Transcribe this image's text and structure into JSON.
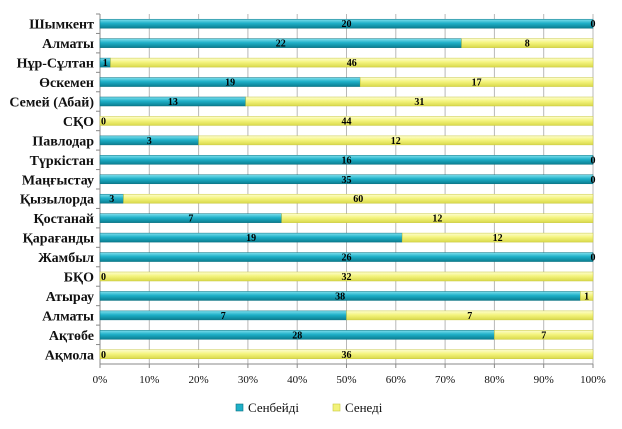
{
  "chart_data": {
    "type": "bar",
    "orientation": "horizontal",
    "stacked": "percent",
    "title": "",
    "xlabel": "",
    "ylabel": "",
    "xlim": [
      0,
      100
    ],
    "x_ticks": [
      "0%",
      "10%",
      "20%",
      "30%",
      "40%",
      "50%",
      "60%",
      "70%",
      "80%",
      "90%",
      "100%"
    ],
    "grid": "vertical",
    "legend_position": "bottom",
    "categories": [
      "Шымкент",
      "Алматы",
      "Нұр-Сұлтан",
      "Өскемен",
      "Семей (Абай)",
      "СҚО",
      "Павлодар",
      "Түркістан",
      "Маңғыстау",
      "Қызылорда",
      "Қостанай",
      "Қарағанды",
      "Жамбыл",
      "БҚО",
      "Атырау",
      "Алматы",
      "Ақтөбе",
      "Ақмола"
    ],
    "series": [
      {
        "name": "Сенбейді",
        "color": "#1fb0c8",
        "values": [
          20,
          22,
          1,
          19,
          13,
          0,
          3,
          16,
          35,
          3,
          7,
          19,
          26,
          0,
          38,
          7,
          28,
          0
        ]
      },
      {
        "name": "Сенеді",
        "color": "#f2f27a",
        "values": [
          0,
          8,
          46,
          17,
          31,
          44,
          12,
          0,
          0,
          60,
          12,
          12,
          0,
          32,
          1,
          7,
          7,
          36
        ]
      }
    ],
    "value_labels": [
      [
        "20",
        "0"
      ],
      [
        "22",
        "8"
      ],
      [
        "1",
        "46"
      ],
      [
        "19",
        "17"
      ],
      [
        "13",
        "31"
      ],
      [
        "0",
        "44"
      ],
      [
        "3",
        "12"
      ],
      [
        "16",
        "0"
      ],
      [
        "35",
        "0"
      ],
      [
        "3",
        "60"
      ],
      [
        "7",
        "12"
      ],
      [
        "19",
        "12"
      ],
      [
        "26",
        "0"
      ],
      [
        "0",
        "32"
      ],
      [
        "38",
        "1"
      ],
      [
        "7",
        "7"
      ],
      [
        "28",
        "7"
      ],
      [
        "0",
        "36"
      ]
    ]
  }
}
